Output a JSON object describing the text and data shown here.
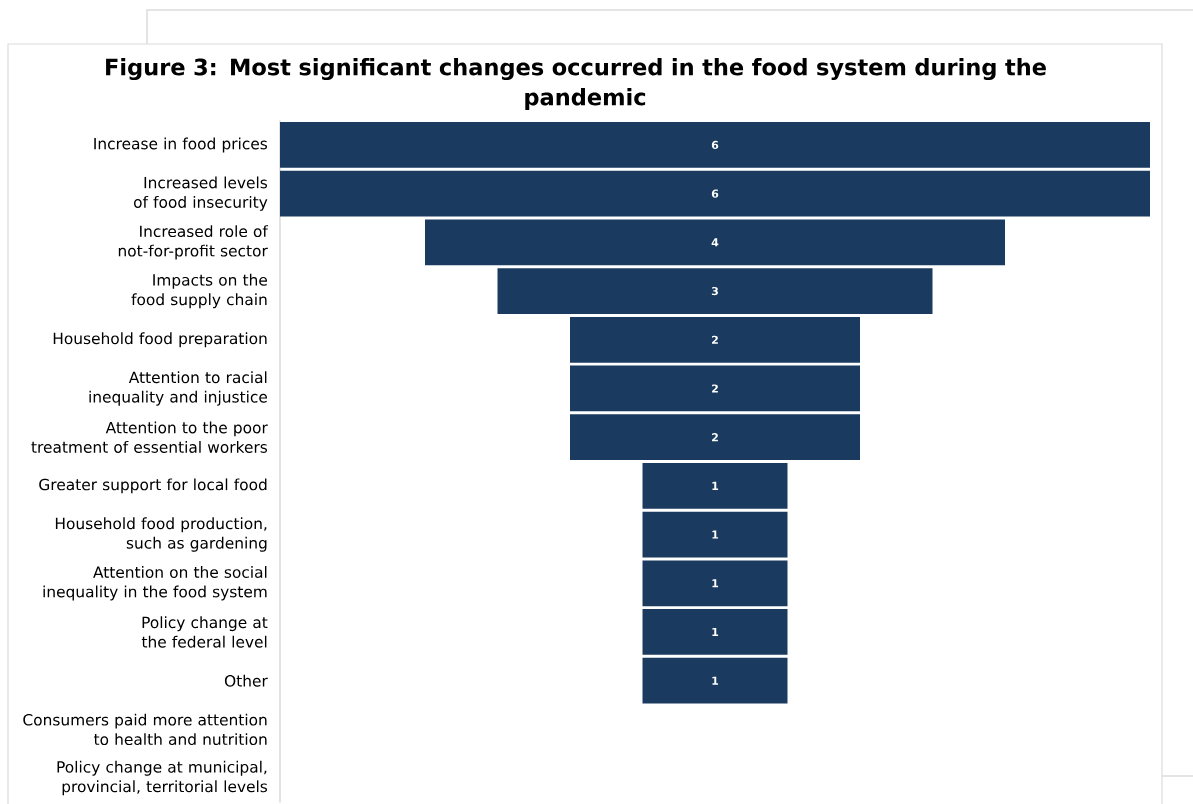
{
  "chart_data": {
    "type": "other",
    "title": "Figure 3: Most significant changes occurred in the food system during the pandemic",
    "categories": [
      "Increase in food prices",
      "Increased levels of food insecurity",
      "Increased role of not-for-profit sector",
      "Impacts on the food supply chain",
      "Household food preparation",
      "Attention to racial inequality and injustice",
      "Attention to the poor treatment of essential workers",
      "Greater support for local food",
      "Household food production, such as gardening",
      "Attention on the social inequality in the food system",
      "Policy change at the federal level",
      "Other",
      "Consumers paid more attention to health and nutrition",
      "Policy change at municipal, provincial, territorial levels"
    ],
    "values": [
      6,
      6,
      4,
      3,
      2,
      2,
      2,
      1,
      1,
      1,
      1,
      1,
      null,
      null
    ],
    "color": "#1b3a5f",
    "data_labels": true
  }
}
